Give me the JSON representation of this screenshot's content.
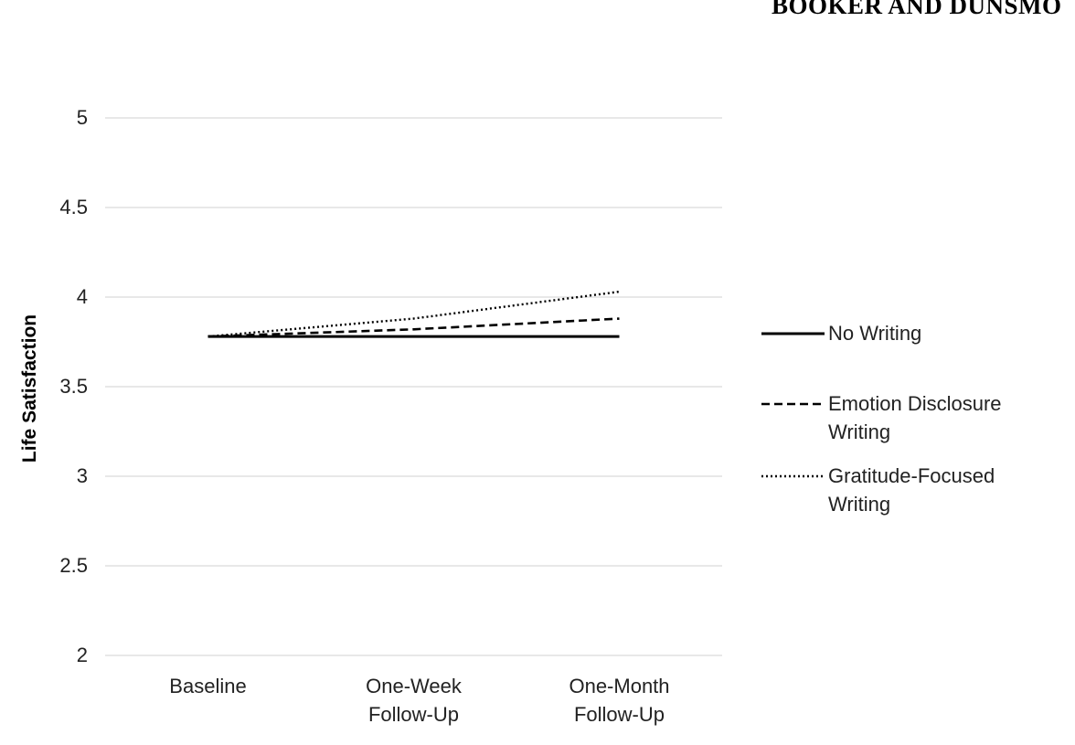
{
  "running_head": "BOOKER AND DUNSMO",
  "chart_data": {
    "type": "line",
    "y_label": "Life Satisfaction",
    "categories": [
      "Baseline",
      "One-Week Follow-Up",
      "One-Month Follow-Up"
    ],
    "series": [
      {
        "name": "No Writing",
        "color": "#000000",
        "dash": "solid",
        "values": [
          3.78,
          3.78,
          3.78
        ]
      },
      {
        "name": "Emotion Disclosure Writing",
        "color": "#000000",
        "dash": "dashed",
        "values": [
          3.78,
          3.82,
          3.88
        ]
      },
      {
        "name": "Gratitude-Focused Writing",
        "color": "#000000",
        "dash": "dotted",
        "values": [
          3.78,
          3.88,
          4.03
        ]
      }
    ],
    "ylim": [
      2,
      5
    ],
    "yticks": [
      2,
      2.5,
      3,
      3.5,
      4,
      4.5,
      5
    ],
    "grid": true,
    "legend": "right"
  }
}
